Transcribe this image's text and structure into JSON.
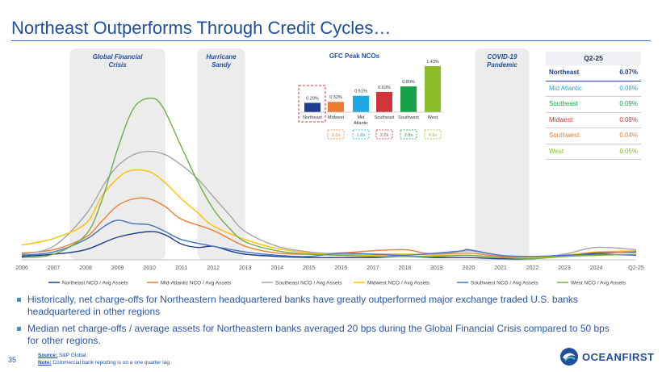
{
  "title": "Northeast Outperforms Through Credit Cycles…",
  "page_number": "35",
  "footnote": {
    "source_label": "Source:",
    "source_text": " S&P Global.",
    "note_label": "Note:",
    "note_text": " Commercial bank reporting is on a one quarter lag."
  },
  "logo_text": "OCEANFIRST",
  "bullets": [
    "Historically, net charge-offs for Northeastern headquartered banks have greatly outperformed major exchange traded U.S. banks headquartered in other regions",
    "Median net charge-offs / average assets for Northeastern banks averaged 20 bps during the Global Financial Crisis compared to 50 bps for other regions."
  ],
  "colors": {
    "accent": "#1f4e9c",
    "northeast": "#1f3d8a",
    "mid_atlantic": "#ed7d31",
    "southeast": "#a5a5a5",
    "midwest": "#ffc000",
    "southwest": "#4472c4",
    "west": "#70ad47",
    "shade": "#ececec"
  },
  "chart_data": [
    {
      "type": "line",
      "title": "",
      "x": [
        "2006",
        "2006Q2",
        "2006Q3",
        "2006Q4",
        "2007",
        "2007Q2",
        "2007Q3",
        "2007Q4",
        "2008",
        "2008Q2",
        "2008Q3",
        "2008Q4",
        "2009",
        "2009Q2",
        "2009Q3",
        "2009Q4",
        "2010",
        "2010Q2",
        "2010Q3",
        "2010Q4",
        "2011",
        "2011Q2",
        "2011Q3",
        "2011Q4",
        "2012",
        "2012Q2",
        "2012Q3",
        "2012Q4",
        "2013",
        "2013Q2",
        "2013Q3",
        "2013Q4",
        "2014",
        "2014Q2",
        "2014Q3",
        "2014Q4",
        "2015",
        "2015Q2",
        "2015Q3",
        "2015Q4",
        "2016",
        "2016Q2",
        "2016Q3",
        "2016Q4",
        "2017",
        "2017Q2",
        "2017Q3",
        "2017Q4",
        "2018",
        "2018Q2",
        "2018Q3",
        "2018Q4",
        "2019",
        "2019Q2",
        "2019Q3",
        "2019Q4",
        "2020",
        "2020Q2",
        "2020Q3",
        "2020Q4",
        "2021",
        "2021Q2",
        "2021Q3",
        "2021Q4",
        "2022",
        "2022Q2",
        "2022Q3",
        "2022Q4",
        "2023",
        "2023Q2",
        "2023Q3",
        "2023Q4",
        "2024",
        "2024Q2",
        "2024Q3",
        "2024Q4",
        "Q2-25"
      ],
      "tick_labels": [
        "2006",
        "2007",
        "2008",
        "2009",
        "2010",
        "2011",
        "2012",
        "2013",
        "2014",
        "2015",
        "2016",
        "2017",
        "2018",
        "2019",
        "2020",
        "2021",
        "2022",
        "2023",
        "2024",
        "Q2-25"
      ],
      "shaded_periods": [
        {
          "label": "Global Financial Crisis",
          "from": 2007.5,
          "to": 2010.5
        },
        {
          "label": "Hurricane Sandy",
          "from": 2011.5,
          "to": 2013.0
        },
        {
          "label": "COVID-19 Pandemic",
          "from": 2020.2,
          "to": 2021.9
        }
      ],
      "ylim": [
        0,
        1.55
      ],
      "series": [
        {
          "name": "Northeast NCO / Avg Assets",
          "color": "#1f3d8a",
          "values": [
            [
              2006,
              0.03
            ],
            [
              2007,
              0.05
            ],
            [
              2008,
              0.09
            ],
            [
              2009,
              0.2
            ],
            [
              2010,
              0.25
            ],
            [
              2010.5,
              0.22
            ],
            [
              2011,
              0.14
            ],
            [
              2011.5,
              0.11
            ],
            [
              2012,
              0.12
            ],
            [
              2012.5,
              0.08
            ],
            [
              2013,
              0.05
            ],
            [
              2014,
              0.03
            ],
            [
              2015,
              0.02
            ],
            [
              2016,
              0.02
            ],
            [
              2017,
              0.02
            ],
            [
              2018,
              0.03
            ],
            [
              2019,
              0.02
            ],
            [
              2020,
              0.02
            ],
            [
              2021,
              0.01
            ],
            [
              2022,
              0.01
            ],
            [
              2023,
              0.04
            ],
            [
              2024,
              0.06
            ],
            [
              2025.25,
              0.07
            ]
          ]
        },
        {
          "name": "Mid-Atlantic NCO / Avg Assets",
          "color": "#ed7d31",
          "values": [
            [
              2006,
              0.06
            ],
            [
              2007,
              0.09
            ],
            [
              2008,
              0.2
            ],
            [
              2008.5,
              0.34
            ],
            [
              2009,
              0.48
            ],
            [
              2009.5,
              0.54
            ],
            [
              2010,
              0.54
            ],
            [
              2010.5,
              0.47
            ],
            [
              2011,
              0.36
            ],
            [
              2012,
              0.26
            ],
            [
              2013,
              0.12
            ],
            [
              2014,
              0.06
            ],
            [
              2015,
              0.05
            ],
            [
              2016,
              0.06
            ],
            [
              2017,
              0.08
            ],
            [
              2018,
              0.09
            ],
            [
              2018.6,
              0.06
            ],
            [
              2019,
              0.05
            ],
            [
              2020,
              0.06
            ],
            [
              2021,
              0.03
            ],
            [
              2022,
              0.02
            ],
            [
              2023,
              0.03
            ],
            [
              2024,
              0.05
            ],
            [
              2025.25,
              0.08
            ]
          ]
        },
        {
          "name": "Southeast NCO / Avg Assets",
          "color": "#a5a5a5",
          "values": [
            [
              2006,
              0.05
            ],
            [
              2007,
              0.12
            ],
            [
              2008,
              0.4
            ],
            [
              2008.6,
              0.68
            ],
            [
              2009,
              0.83
            ],
            [
              2009.5,
              0.93
            ],
            [
              2010,
              0.96
            ],
            [
              2010.5,
              0.93
            ],
            [
              2011,
              0.84
            ],
            [
              2011.5,
              0.72
            ],
            [
              2012,
              0.56
            ],
            [
              2012.5,
              0.4
            ],
            [
              2013,
              0.25
            ],
            [
              2014,
              0.12
            ],
            [
              2015,
              0.07
            ],
            [
              2016,
              0.05
            ],
            [
              2017,
              0.05
            ],
            [
              2018,
              0.05
            ],
            [
              2019,
              0.05
            ],
            [
              2020,
              0.08
            ],
            [
              2021,
              0.04
            ],
            [
              2022,
              0.02
            ],
            [
              2023,
              0.05
            ],
            [
              2024,
              0.11
            ],
            [
              2025.25,
              0.09
            ]
          ]
        },
        {
          "name": "Midwest NCO / Avg Assets",
          "color": "#ffc000",
          "values": [
            [
              2006,
              0.13
            ],
            [
              2007,
              0.19
            ],
            [
              2008,
              0.32
            ],
            [
              2008.5,
              0.56
            ],
            [
              2009,
              0.72
            ],
            [
              2009.4,
              0.79
            ],
            [
              2010,
              0.78
            ],
            [
              2010.5,
              0.68
            ],
            [
              2011,
              0.54
            ],
            [
              2011.5,
              0.42
            ],
            [
              2012,
              0.3
            ],
            [
              2013,
              0.18
            ],
            [
              2014,
              0.1
            ],
            [
              2015,
              0.06
            ],
            [
              2016,
              0.04
            ],
            [
              2017,
              0.04
            ],
            [
              2018,
              0.05
            ],
            [
              2019,
              0.04
            ],
            [
              2020,
              0.04
            ],
            [
              2021,
              0.02
            ],
            [
              2022,
              0.02
            ],
            [
              2023,
              0.04
            ],
            [
              2024,
              0.07
            ],
            [
              2025.25,
              0.08
            ]
          ]
        },
        {
          "name": "Southwest NCO / Avg Assets",
          "color": "#4472c4",
          "values": [
            [
              2006,
              0.04
            ],
            [
              2007,
              0.07
            ],
            [
              2008,
              0.18
            ],
            [
              2008.6,
              0.3
            ],
            [
              2009,
              0.35
            ],
            [
              2009.5,
              0.32
            ],
            [
              2010,
              0.31
            ],
            [
              2010.5,
              0.25
            ],
            [
              2011,
              0.18
            ],
            [
              2012,
              0.12
            ],
            [
              2013,
              0.07
            ],
            [
              2014,
              0.04
            ],
            [
              2015,
              0.03
            ],
            [
              2016,
              0.06
            ],
            [
              2017,
              0.05
            ],
            [
              2018,
              0.04
            ],
            [
              2019,
              0.06
            ],
            [
              2019.8,
              0.08
            ],
            [
              2020,
              0.09
            ],
            [
              2021,
              0.04
            ],
            [
              2022,
              0.03
            ],
            [
              2023,
              0.04
            ],
            [
              2024,
              0.05
            ],
            [
              2025.25,
              0.04
            ]
          ]
        },
        {
          "name": "West NCO / Avg Assets",
          "color": "#70ad47",
          "values": [
            [
              2006,
              0.02
            ],
            [
              2007,
              0.05
            ],
            [
              2008,
              0.22
            ],
            [
              2008.5,
              0.52
            ],
            [
              2009,
              0.98
            ],
            [
              2009.5,
              1.34
            ],
            [
              2010,
              1.43
            ],
            [
              2010.4,
              1.36
            ],
            [
              2011,
              1.0
            ],
            [
              2011.5,
              0.7
            ],
            [
              2012,
              0.45
            ],
            [
              2012.5,
              0.28
            ],
            [
              2013,
              0.16
            ],
            [
              2014,
              0.08
            ],
            [
              2015,
              0.05
            ],
            [
              2016,
              0.04
            ],
            [
              2017,
              0.03
            ],
            [
              2018,
              0.03
            ],
            [
              2019,
              0.03
            ],
            [
              2020,
              0.04
            ],
            [
              2021,
              0.02
            ],
            [
              2022,
              0.01
            ],
            [
              2023,
              0.03
            ],
            [
              2024,
              0.04
            ],
            [
              2025.25,
              0.05
            ]
          ]
        }
      ],
      "legend": [
        "Northeast NCO / Avg Assets",
        "Mid-Atlantic NCO / Avg Assets",
        "Southeast NCO / Avg Assets",
        "Midwest NCO / Avg Assets",
        "Southwest NCO / Avg Assets",
        "West NCO / Avg Assets"
      ],
      "legend_position": "bottom"
    },
    {
      "type": "bar",
      "title": "GFC Peak NCOs",
      "categories": [
        "Northeast",
        "Midwest",
        "Mid Atlantic",
        "Southeast",
        "Southwest",
        "West"
      ],
      "values": [
        0.29,
        0.32,
        0.51,
        0.63,
        0.8,
        1.43
      ],
      "value_labels": [
        "0.29%",
        "0.32%",
        "0.51%",
        "0.63%",
        "0.80%",
        "1.43%"
      ],
      "colors": [
        "#1f3d8a",
        "#ed7d31",
        "#1ea7e1",
        "#d13438",
        "#17a24a",
        "#8cbc2a"
      ],
      "multipliers": [
        {
          "category": "Midwest",
          "text": "1.1x",
          "color": "#ed7d31"
        },
        {
          "category": "Mid Atlantic",
          "text": "1.8x",
          "color": "#1ea7e1"
        },
        {
          "category": "Southeast",
          "text": "2.2x",
          "color": "#d13438"
        },
        {
          "category": "Southwest",
          "text": "2.8x",
          "color": "#17a24a"
        },
        {
          "category": "West",
          "text": "4.9x",
          "color": "#8cbc2a"
        }
      ],
      "highlighted": "Northeast"
    },
    {
      "type": "table",
      "title": "Q2-25",
      "rows": [
        {
          "region": "Northeast",
          "value": "0.07%",
          "color": "#1f3d8a"
        },
        {
          "region": "Mid Atlantic",
          "value": "0.08%",
          "color": "#1ea7e1"
        },
        {
          "region": "Southeast",
          "value": "0.09%",
          "color": "#17a24a"
        },
        {
          "region": "Midwest",
          "value": "0.08%",
          "color": "#d13438"
        },
        {
          "region": "Southwest",
          "value": "0.04%",
          "color": "#ed7d31"
        },
        {
          "region": "West",
          "value": "0.05%",
          "color": "#8cbc2a"
        }
      ]
    }
  ]
}
